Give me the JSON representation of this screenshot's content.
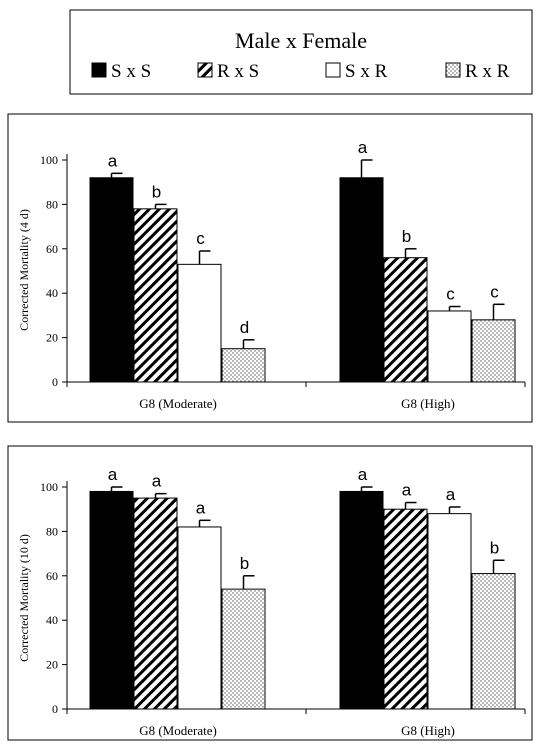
{
  "legend": {
    "title": "Male x Female",
    "items": [
      {
        "label": "S x S",
        "pattern": "solid"
      },
      {
        "label": "R x S",
        "pattern": "diagonal"
      },
      {
        "label": "S x R",
        "pattern": "open"
      },
      {
        "label": "R x R",
        "pattern": "dotted"
      }
    ]
  },
  "chart_data": [
    {
      "type": "bar",
      "ylabel": "Corrected Mortality (4 d)",
      "ylim": [
        0,
        100
      ],
      "yticks": [
        0,
        20,
        40,
        60,
        80,
        100
      ],
      "categories": [
        "G8 (Moderate)",
        "G8 (High)"
      ],
      "series": [
        {
          "name": "S x S",
          "values": [
            92,
            92
          ],
          "errors": [
            2,
            8
          ],
          "letters": [
            "a",
            "a"
          ]
        },
        {
          "name": "R x S",
          "values": [
            78,
            56
          ],
          "errors": [
            2,
            4
          ],
          "letters": [
            "b",
            "b"
          ]
        },
        {
          "name": "S x R",
          "values": [
            53,
            32
          ],
          "errors": [
            6,
            2
          ],
          "letters": [
            "c",
            "c"
          ]
        },
        {
          "name": "R x R",
          "values": [
            15,
            28
          ],
          "errors": [
            4,
            7
          ],
          "letters": [
            "d",
            "c"
          ]
        }
      ]
    },
    {
      "type": "bar",
      "ylabel": "Corrected Mortality (10 d)",
      "ylim": [
        0,
        100
      ],
      "yticks": [
        0,
        20,
        40,
        60,
        80,
        100
      ],
      "categories": [
        "G8 (Moderate)",
        "G8 (High)"
      ],
      "series": [
        {
          "name": "S x S",
          "values": [
            98,
            98
          ],
          "errors": [
            2,
            2
          ],
          "letters": [
            "a",
            "a"
          ]
        },
        {
          "name": "R x S",
          "values": [
            95,
            90
          ],
          "errors": [
            2,
            3
          ],
          "letters": [
            "a",
            "a"
          ]
        },
        {
          "name": "S x R",
          "values": [
            82,
            88
          ],
          "errors": [
            3,
            3
          ],
          "letters": [
            "a",
            "a"
          ]
        },
        {
          "name": "R x R",
          "values": [
            54,
            61
          ],
          "errors": [
            6,
            6
          ],
          "letters": [
            "b",
            "b"
          ]
        }
      ]
    }
  ]
}
